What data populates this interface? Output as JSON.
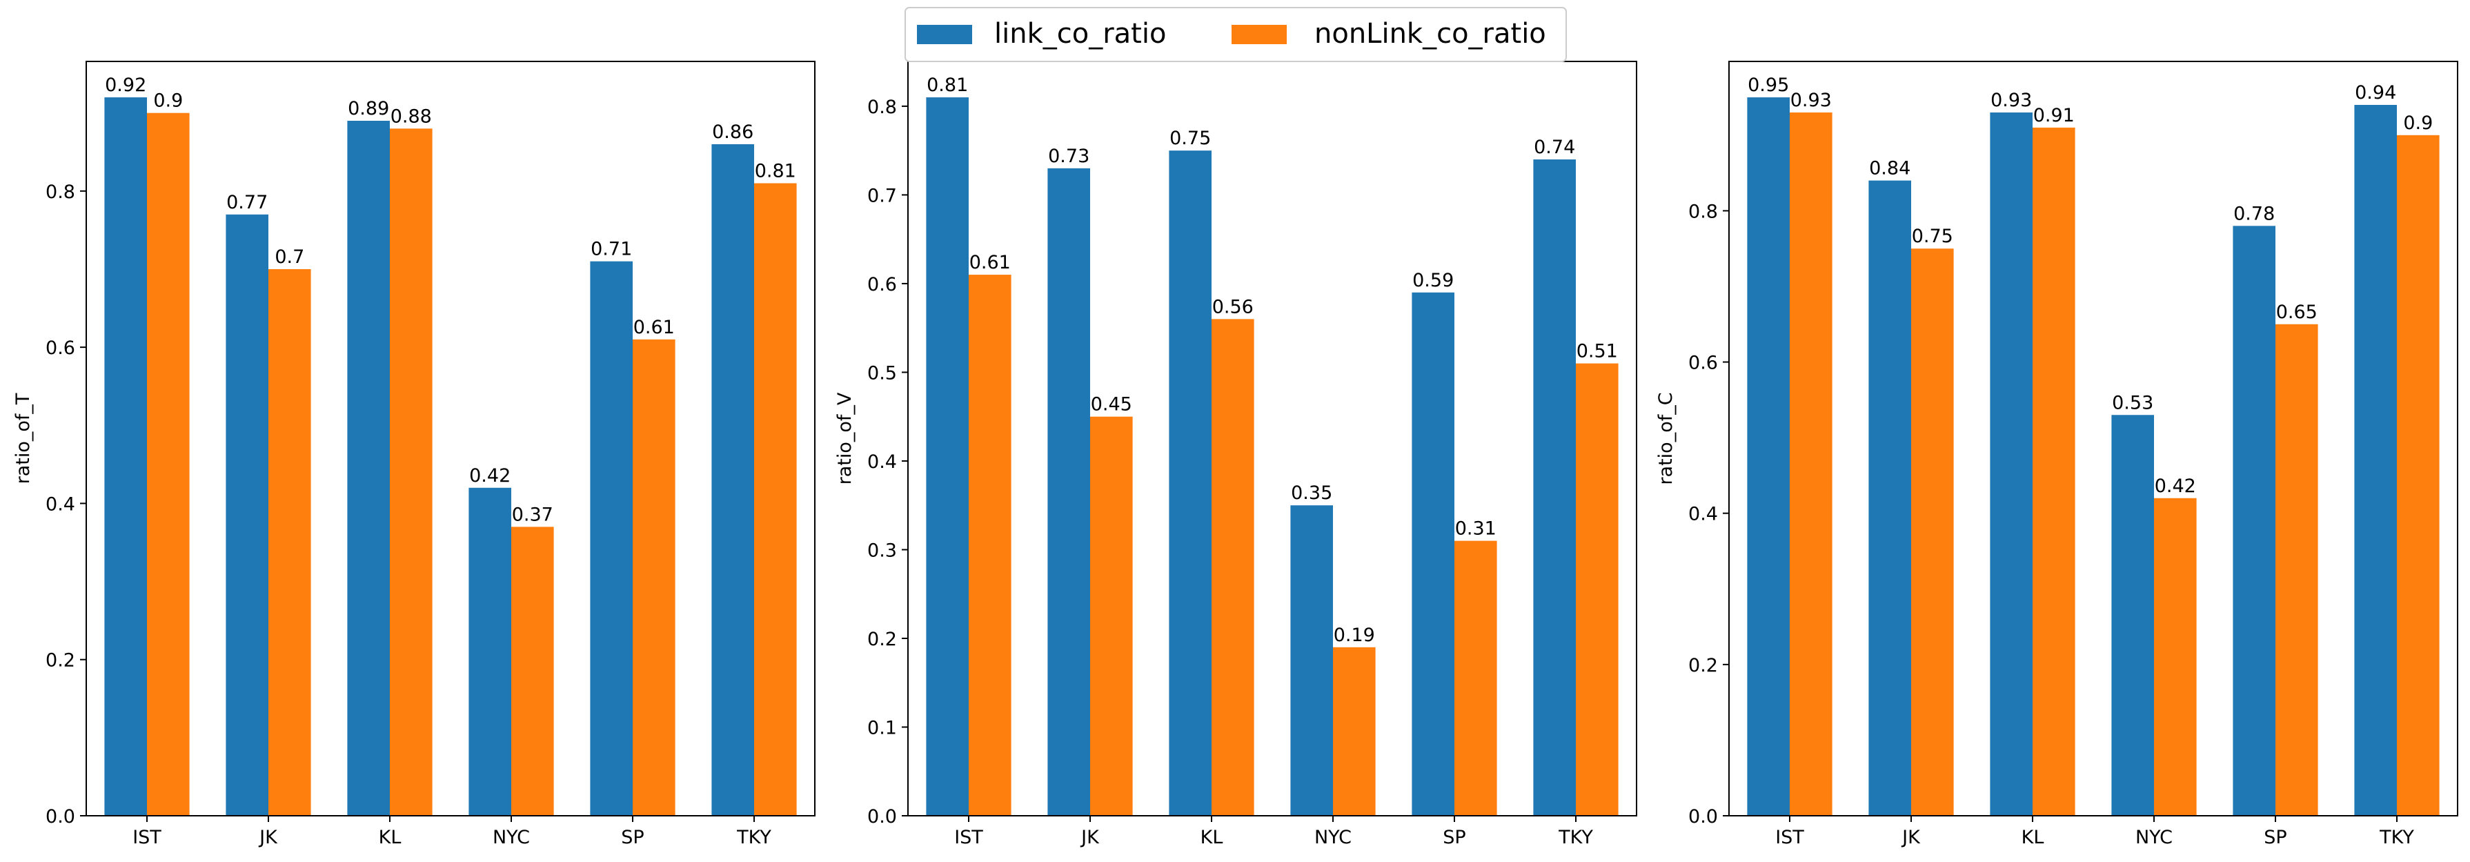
{
  "legend": {
    "items": [
      {
        "label": "link_co_ratio",
        "color": "#1f77b4"
      },
      {
        "label": "nonLink_co_ratio",
        "color": "#ff7f0e"
      }
    ],
    "placement": "top-center"
  },
  "chart_data": [
    {
      "type": "bar",
      "categories": [
        "IST",
        "JK",
        "KL",
        "NYC",
        "SP",
        "TKY"
      ],
      "series": [
        {
          "name": "link_co_ratio",
          "values": [
            0.92,
            0.77,
            0.89,
            0.42,
            0.71,
            0.86
          ],
          "labels": [
            "0.92",
            "0.77",
            "0.89",
            "0.42",
            "0.71",
            "0.86"
          ],
          "color": "#1f77b4"
        },
        {
          "name": "nonLink_co_ratio",
          "values": [
            0.9,
            0.7,
            0.88,
            0.37,
            0.61,
            0.81
          ],
          "labels": [
            "0.9",
            "0.7",
            "0.88",
            "0.37",
            "0.61",
            "0.81"
          ],
          "color": "#ff7f0e"
        }
      ],
      "ylabel": "ratio_of_T",
      "ylim": [
        0,
        0.966
      ],
      "yticks": [
        0.0,
        0.2,
        0.4,
        0.6,
        0.8
      ],
      "ytick_labels": [
        "0.0",
        "0.2",
        "0.4",
        "0.6",
        "0.8"
      ],
      "grid": false
    },
    {
      "type": "bar",
      "categories": [
        "IST",
        "JK",
        "KL",
        "NYC",
        "SP",
        "TKY"
      ],
      "series": [
        {
          "name": "link_co_ratio",
          "values": [
            0.81,
            0.73,
            0.75,
            0.35,
            0.59,
            0.74
          ],
          "labels": [
            "0.81",
            "0.73",
            "0.75",
            "0.35",
            "0.59",
            "0.74"
          ],
          "color": "#1f77b4"
        },
        {
          "name": "nonLink_co_ratio",
          "values": [
            0.61,
            0.45,
            0.56,
            0.19,
            0.31,
            0.51
          ],
          "labels": [
            "0.61",
            "0.45",
            "0.56",
            "0.19",
            "0.31",
            "0.51"
          ],
          "color": "#ff7f0e"
        }
      ],
      "ylabel": "ratio_of_V",
      "ylim": [
        0,
        0.8505
      ],
      "yticks": [
        0.0,
        0.1,
        0.2,
        0.3,
        0.4,
        0.5,
        0.6,
        0.7,
        0.8
      ],
      "ytick_labels": [
        "0.0",
        "0.1",
        "0.2",
        "0.3",
        "0.4",
        "0.5",
        "0.6",
        "0.7",
        "0.8"
      ],
      "grid": false
    },
    {
      "type": "bar",
      "categories": [
        "IST",
        "JK",
        "KL",
        "NYC",
        "SP",
        "TKY"
      ],
      "series": [
        {
          "name": "link_co_ratio",
          "values": [
            0.95,
            0.84,
            0.93,
            0.53,
            0.78,
            0.94
          ],
          "labels": [
            "0.95",
            "0.84",
            "0.93",
            "0.53",
            "0.78",
            "0.94"
          ],
          "color": "#1f77b4"
        },
        {
          "name": "nonLink_co_ratio",
          "values": [
            0.93,
            0.75,
            0.91,
            0.42,
            0.65,
            0.9
          ],
          "labels": [
            "0.93",
            "0.75",
            "0.91",
            "0.42",
            "0.65",
            "0.9"
          ],
          "color": "#ff7f0e"
        }
      ],
      "ylabel": "ratio_of_C",
      "ylim": [
        0,
        0.9975
      ],
      "yticks": [
        0.0,
        0.2,
        0.4,
        0.6,
        0.8
      ],
      "ytick_labels": [
        "0.0",
        "0.2",
        "0.4",
        "0.6",
        "0.8"
      ],
      "grid": false
    }
  ]
}
